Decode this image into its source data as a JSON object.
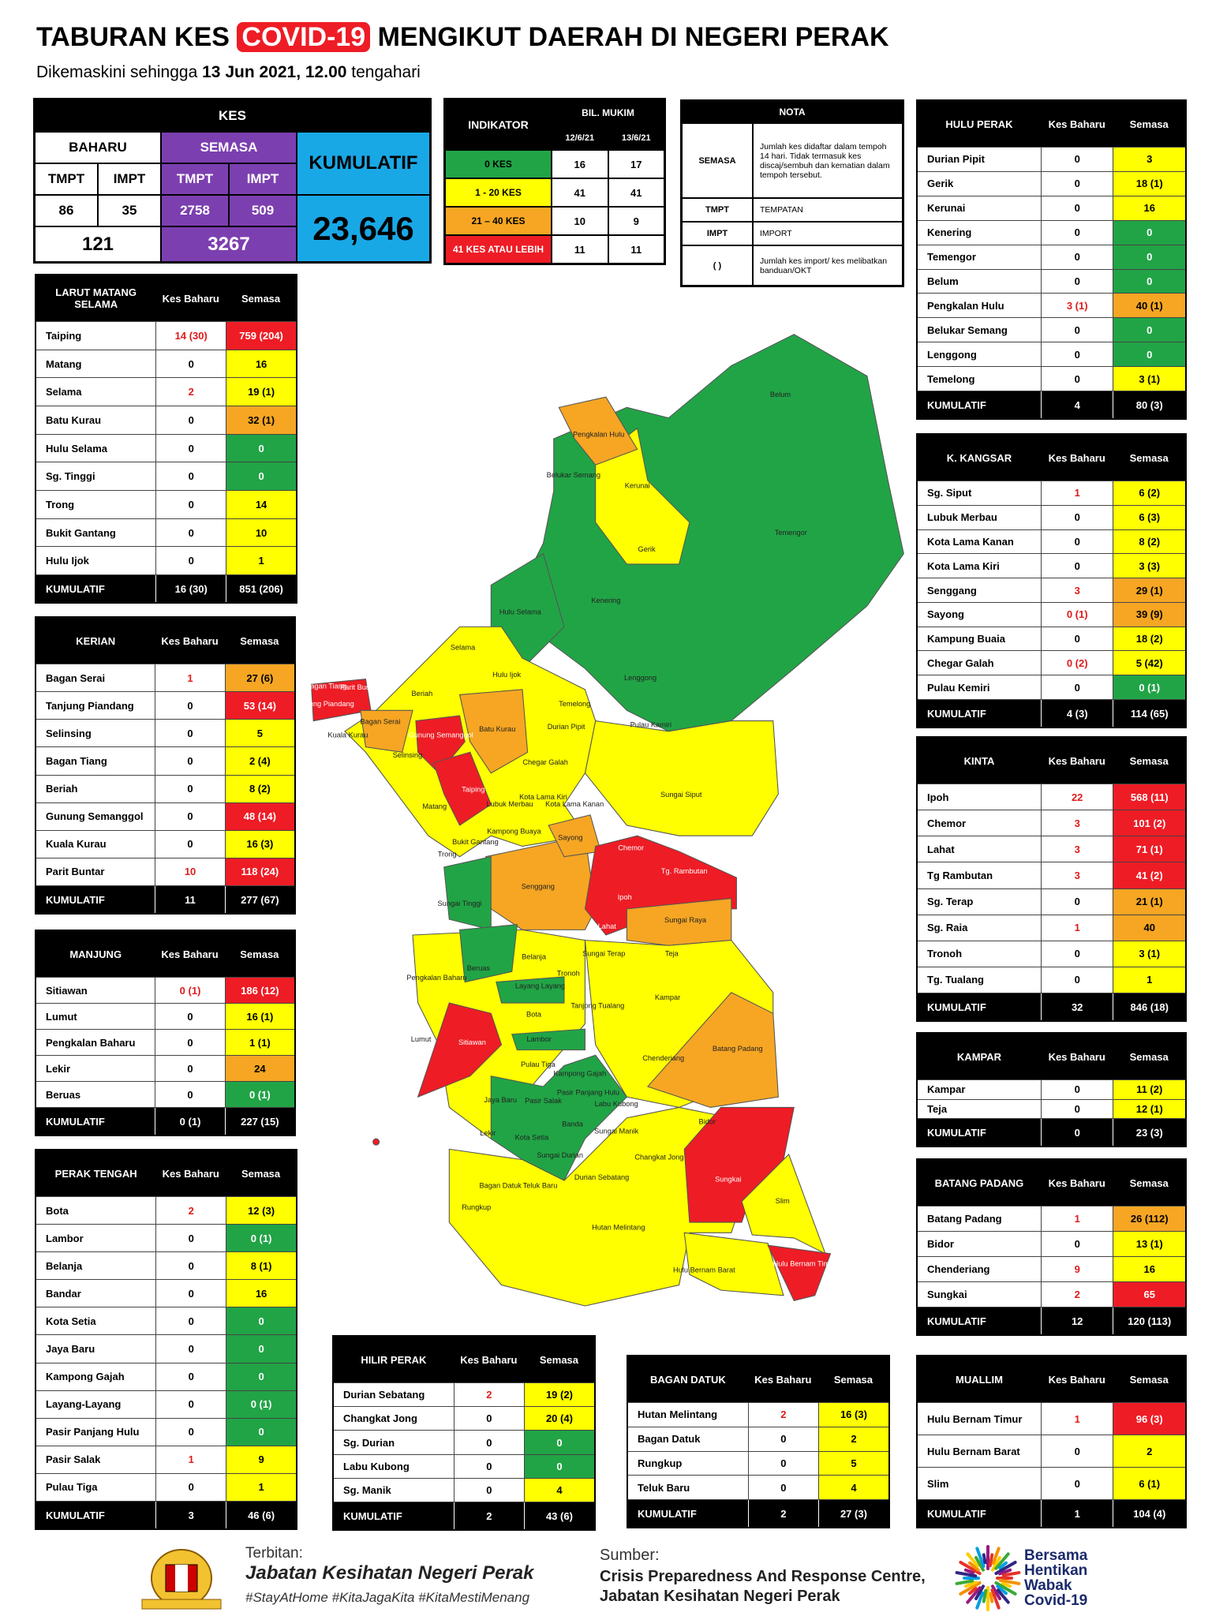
{
  "header": {
    "title": [
      "TABURAN KES",
      "COVID-19",
      "MENGIKUT DAERAH DI NEGERI PERAK"
    ],
    "subtitle": [
      "Dikemaskini sehingga",
      "13 Jun 2021, 12.00",
      "tengahari"
    ]
  },
  "colors": {
    "green": "#21a446",
    "yellow": "#ffff00",
    "orange": "#f6a623",
    "red": "#ee1c25",
    "purple": "#7c3fb0",
    "blue": "#19a8e6"
  },
  "kes": {
    "title": "KES",
    "groups": [
      "BAHARU",
      "SEMASA"
    ],
    "sub": [
      "TMPT",
      "IMPT",
      "TMPT",
      "IMPT"
    ],
    "values": [
      "86",
      "35",
      "2758",
      "509"
    ],
    "totals": [
      "121",
      "3267"
    ],
    "kumulatif_label": "KUMULATIF",
    "kumulatif": "23,646"
  },
  "indikator": {
    "title": "INDIKATOR",
    "group": "BIL. MUKIM",
    "dates": [
      "12/6/21",
      "13/6/21"
    ],
    "rows": [
      [
        "0 KES",
        "16",
        "17"
      ],
      [
        "1 - 20 KES",
        "41",
        "41"
      ],
      [
        "21 – 40 KES",
        "10",
        "9"
      ],
      [
        "41 KES ATAU LEBIH",
        "11",
        "11"
      ]
    ],
    "colors": [
      "green",
      "yellow",
      "orange",
      "red"
    ]
  },
  "nota": {
    "title": "NOTA",
    "rows": [
      [
        "SEMASA",
        "Jumlah kes didaftar dalam tempoh 14 hari. Tidak termasuk kes discaj/sembuh dan kematian dalam tempoh tersebut."
      ],
      [
        "TMPT",
        "TEMPATAN"
      ],
      [
        "IMPT",
        "IMPORT"
      ],
      [
        "( )",
        "Jumlah kes import/ kes melibatkan banduan/OKT"
      ]
    ]
  },
  "table_columns": [
    "Kes Baharu",
    "Semasa"
  ],
  "kumulatif_label": "KUMULATIF",
  "districts": [
    {
      "name": "LARUT MATANG SELAMA",
      "rows": [
        [
          "Taiping",
          "14 (30)",
          "759 (204)"
        ],
        [
          "Matang",
          "0",
          "16"
        ],
        [
          "Selama",
          "2",
          "19 (1)"
        ],
        [
          "Batu Kurau",
          "0",
          "32 (1)"
        ],
        [
          "Hulu Selama",
          "0",
          "0"
        ],
        [
          "Sg. Tinggi",
          "0",
          "0"
        ],
        [
          "Trong",
          "0",
          "14"
        ],
        [
          "Bukit Gantang",
          "0",
          "10"
        ],
        [
          "Hulu Ijok",
          "0",
          "1"
        ]
      ],
      "colors": [
        "red",
        "yellow",
        "yellow",
        "orange",
        "green",
        "green",
        "yellow",
        "yellow",
        "yellow"
      ],
      "kumulatif": [
        "16 (30)",
        "851 (206)"
      ]
    },
    {
      "name": "KERIAN",
      "rows": [
        [
          "Bagan Serai",
          "1",
          "27 (6)"
        ],
        [
          "Tanjung Piandang",
          "0",
          "53 (14)"
        ],
        [
          "Selinsing",
          "0",
          "5"
        ],
        [
          "Bagan Tiang",
          "0",
          "2 (4)"
        ],
        [
          "Beriah",
          "0",
          "8 (2)"
        ],
        [
          "Gunung Semanggol",
          "0",
          "48 (14)"
        ],
        [
          "Kuala Kurau",
          "0",
          "16 (3)"
        ],
        [
          "Parit Buntar",
          "10",
          "118 (24)"
        ]
      ],
      "colors": [
        "orange",
        "red",
        "yellow",
        "yellow",
        "yellow",
        "red",
        "yellow",
        "red"
      ],
      "kumulatif": [
        "11",
        "277 (67)"
      ]
    },
    {
      "name": "MANJUNG",
      "rows": [
        [
          "Sitiawan",
          "0 (1)",
          "186 (12)"
        ],
        [
          "Lumut",
          "0",
          "16 (1)"
        ],
        [
          "Pengkalan Baharu",
          "0",
          "1 (1)"
        ],
        [
          "Lekir",
          "0",
          "24"
        ],
        [
          "Beruas",
          "0",
          "0 (1)"
        ]
      ],
      "colors": [
        "red",
        "yellow",
        "yellow",
        "orange",
        "green"
      ],
      "kumulatif": [
        "0 (1)",
        "227 (15)"
      ]
    },
    {
      "name": "PERAK TENGAH",
      "rows": [
        [
          "Bota",
          "2",
          "12 (3)"
        ],
        [
          "Lambor",
          "0",
          "0 (1)"
        ],
        [
          "Belanja",
          "0",
          "8 (1)"
        ],
        [
          "Bandar",
          "0",
          "16"
        ],
        [
          "Kota Setia",
          "0",
          "0"
        ],
        [
          "Jaya Baru",
          "0",
          "0"
        ],
        [
          "Kampong Gajah",
          "0",
          "0"
        ],
        [
          "Layang-Layang",
          "0",
          "0 (1)"
        ],
        [
          "Pasir Panjang Hulu",
          "0",
          "0"
        ],
        [
          "Pasir Salak",
          "1",
          "9"
        ],
        [
          "Pulau Tiga",
          "0",
          "1"
        ]
      ],
      "colors": [
        "yellow",
        "green",
        "yellow",
        "yellow",
        "green",
        "green",
        "green",
        "green",
        "green",
        "yellow",
        "yellow"
      ],
      "kumulatif": [
        "3",
        "46 (6)"
      ]
    },
    {
      "name": "HILIR PERAK",
      "rows": [
        [
          "Durian Sebatang",
          "2",
          "19 (2)"
        ],
        [
          "Changkat Jong",
          "0",
          "20 (4)"
        ],
        [
          "Sg. Durian",
          "0",
          "0"
        ],
        [
          "Labu Kubong",
          "0",
          "0"
        ],
        [
          "Sg. Manik",
          "0",
          "4"
        ]
      ],
      "colors": [
        "yellow",
        "yellow",
        "green",
        "green",
        "yellow"
      ],
      "kumulatif": [
        "2",
        "43 (6)"
      ]
    },
    {
      "name": "BAGAN DATUK",
      "rows": [
        [
          "Hutan Melintang",
          "2",
          "16 (3)"
        ],
        [
          "Bagan Datuk",
          "0",
          "2"
        ],
        [
          "Rungkup",
          "0",
          "5"
        ],
        [
          "Teluk Baru",
          "0",
          "4"
        ]
      ],
      "colors": [
        "yellow",
        "yellow",
        "yellow",
        "yellow"
      ],
      "kumulatif": [
        "2",
        "27 (3)"
      ]
    },
    {
      "name": "HULU PERAK",
      "rows": [
        [
          "Durian Pipit",
          "0",
          "3"
        ],
        [
          "Gerik",
          "0",
          "18 (1)"
        ],
        [
          "Kerunai",
          "0",
          "16"
        ],
        [
          "Kenering",
          "0",
          "0"
        ],
        [
          "Temengor",
          "0",
          "0"
        ],
        [
          "Belum",
          "0",
          "0"
        ],
        [
          "Pengkalan Hulu",
          "3 (1)",
          "40 (1)"
        ],
        [
          "Belukar Semang",
          "0",
          "0"
        ],
        [
          "Lenggong",
          "0",
          "0"
        ],
        [
          "Temelong",
          "0",
          "3 (1)"
        ]
      ],
      "colors": [
        "yellow",
        "yellow",
        "yellow",
        "green",
        "green",
        "green",
        "orange",
        "green",
        "green",
        "yellow"
      ],
      "kumulatif": [
        "4",
        "80 (3)"
      ]
    },
    {
      "name": "K. KANGSAR",
      "rows": [
        [
          "Sg. Siput",
          "1",
          "6 (2)"
        ],
        [
          "Lubuk Merbau",
          "0",
          "6 (3)"
        ],
        [
          "Kota Lama Kanan",
          "0",
          "8 (2)"
        ],
        [
          "Kota Lama Kiri",
          "0",
          "3 (3)"
        ],
        [
          "Senggang",
          "3",
          "29 (1)"
        ],
        [
          "Sayong",
          "0 (1)",
          "39 (9)"
        ],
        [
          "Kampung Buaia",
          "0",
          "18 (2)"
        ],
        [
          "Chegar Galah",
          "0 (2)",
          "5 (42)"
        ],
        [
          "Pulau Kemiri",
          "0",
          "0 (1)"
        ]
      ],
      "colors": [
        "yellow",
        "yellow",
        "yellow",
        "yellow",
        "orange",
        "orange",
        "yellow",
        "yellow",
        "green"
      ],
      "kumulatif": [
        "4 (3)",
        "114 (65)"
      ]
    },
    {
      "name": "KINTA",
      "rows": [
        [
          "Ipoh",
          "22",
          "568 (11)"
        ],
        [
          "Chemor",
          "3",
          "101 (2)"
        ],
        [
          "Lahat",
          "3",
          "71 (1)"
        ],
        [
          "Tg Rambutan",
          "3",
          "41 (2)"
        ],
        [
          "Sg. Terap",
          "0",
          "21 (1)"
        ],
        [
          "Sg. Raia",
          "1",
          "40"
        ],
        [
          "Tronoh",
          "0",
          "3 (1)"
        ],
        [
          "Tg. Tualang",
          "0",
          "1"
        ]
      ],
      "colors": [
        "red",
        "red",
        "red",
        "red",
        "orange",
        "orange",
        "yellow",
        "yellow"
      ],
      "kumulatif": [
        "32",
        "846 (18)"
      ]
    },
    {
      "name": "KAMPAR",
      "rows": [
        [
          "Kampar",
          "0",
          "11 (2)"
        ],
        [
          "Teja",
          "0",
          "12 (1)"
        ]
      ],
      "colors": [
        "yellow",
        "yellow"
      ],
      "kumulatif": [
        "0",
        "23 (3)"
      ]
    },
    {
      "name": "BATANG PADANG",
      "rows": [
        [
          "Batang Padang",
          "1",
          "26 (112)"
        ],
        [
          "Bidor",
          "0",
          "13 (1)"
        ],
        [
          "Chenderiang",
          "9",
          "16"
        ],
        [
          "Sungkai",
          "2",
          "65"
        ]
      ],
      "colors": [
        "orange",
        "yellow",
        "yellow",
        "red"
      ],
      "kumulatif": [
        "12",
        "120 (113)"
      ]
    },
    {
      "name": "MUALLIM",
      "rows": [
        [
          "Hulu Bernam Timur",
          "1",
          "96 (3)"
        ],
        [
          "Hulu Bernam Barat",
          "0",
          "2"
        ],
        [
          "Slim",
          "0",
          "6 (1)"
        ]
      ],
      "colors": [
        "red",
        "yellow",
        "yellow"
      ],
      "kumulatif": [
        "1",
        "104 (4)"
      ]
    }
  ],
  "map": {
    "labels": [
      "Belum",
      "Pengkalan Hulu",
      "Belukar Semang",
      "Kerunai",
      "Gerik",
      "Temengor",
      "Kenering",
      "Hulu Selama",
      "Selama",
      "Hulu Ijok",
      "Lenggong",
      "Beriah",
      "Bagan Tiang",
      "Parit Buntar",
      "Tanjung Piandang",
      "Temelong",
      "Bagan Serai",
      "Gunung Semanggol",
      "Batu Kurau",
      "Durian Pipit",
      "Pulau Kamiri",
      "Kuala Kurau",
      "Selinsing",
      "Chegar Galah",
      "Taiping",
      "Sungai Siput",
      "Matang",
      "Lubuk Merbau",
      "Kota Lama Kiri",
      "Kota Lama Kanan",
      "Kampong Buaya",
      "Sayong",
      "Bukit Gantang",
      "Trong",
      "Chemor",
      "Tg. Rambutan",
      "Senggang",
      "Sungai Tinggi",
      "Ipoh",
      "Sungai Raya",
      "Lahat",
      "Sungai Terap",
      "Teja",
      "Belanja",
      "Pengkalan Baharu",
      "Beruas",
      "Layang Layang",
      "Tronoh",
      "Kampar",
      "Tanjong Tualang",
      "Bota",
      "Sitiawan",
      "Lumut",
      "Lambor",
      "Batang Padang",
      "Chenderiang",
      "Pulau Tiga",
      "Kampong Gajah",
      "Pasir Panjang Hulu",
      "Jaya Baru",
      "Pasir Salak",
      "Labu Kubong",
      "Bidor",
      "Banda",
      "Lekir",
      "Kota Setia",
      "Sungai Manik",
      "Sungai Durian",
      "Changkat Jong",
      "Sungkai",
      "Bagan Datuk",
      "Teluk Baru",
      "Durian Sebatang",
      "Slim",
      "Rungkup",
      "Hutan Melintang",
      "Hulu Bernam Timor",
      "Hulu Bernam Barat"
    ]
  },
  "footer": {
    "publisher_label": "Terbitan:",
    "publisher": "Jabatan Kesihatan Negeri Perak",
    "hashtags": "#StayAtHome #KitaJagaKita #KitaMestiMenang",
    "source_label": "Sumber:",
    "source": [
      "Crisis Preparedness And Response Centre,",
      "Jabatan Kesihatan Negeri Perak"
    ],
    "campaign": [
      "Bersama",
      "Hentikan",
      "Wabak",
      "Covid-19"
    ]
  }
}
